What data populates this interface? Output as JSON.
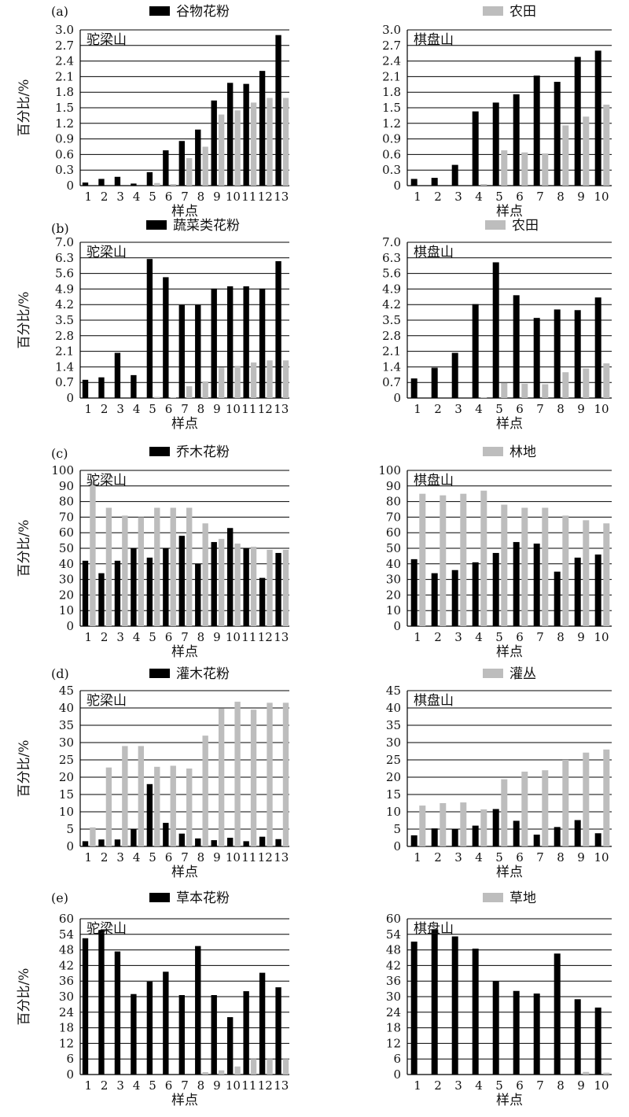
{
  "chart_data": [
    {
      "type": "bar",
      "panel_label": "(a)",
      "site": "驼梁山",
      "legend": "谷物花粉",
      "xlabel": "样点",
      "ylabel": "百分比/%",
      "ylim": [
        0,
        3.0
      ],
      "yticks": [
        "0",
        "0.3",
        "0.6",
        "0.9",
        "1.2",
        "1.5",
        "1.8",
        "2.1",
        "2.4",
        "2.7",
        "3.0"
      ],
      "categories": [
        "1",
        "2",
        "3",
        "4",
        "5",
        "6",
        "7",
        "8",
        "9",
        "10",
        "11",
        "12",
        "13"
      ],
      "series": [
        {
          "name": "谷物花粉",
          "color": "#000000",
          "values": [
            0.06,
            0.13,
            0.17,
            0.04,
            0.26,
            0.68,
            0.86,
            1.08,
            1.64,
            1.98,
            1.96,
            2.21,
            2.9
          ]
        },
        {
          "name": "农田",
          "color": "#bdbdbd",
          "values": [
            0.0,
            0.0,
            0.0,
            0.0,
            0.05,
            0.03,
            0.53,
            0.75,
            1.37,
            1.45,
            1.6,
            1.69,
            1.69
          ]
        }
      ]
    },
    {
      "type": "bar",
      "panel_label": "",
      "site": "棋盘山",
      "legend": "农田",
      "xlabel": "样点",
      "ylabel": "",
      "ylim": [
        0,
        3.0
      ],
      "yticks": [
        "0",
        "0.3",
        "0.6",
        "0.9",
        "1.2",
        "1.5",
        "1.8",
        "2.1",
        "2.4",
        "2.7",
        "3.0"
      ],
      "categories": [
        "1",
        "2",
        "3",
        "4",
        "5",
        "6",
        "7",
        "8",
        "9",
        "10"
      ],
      "series": [
        {
          "name": "谷物花粉",
          "color": "#000000",
          "values": [
            0.13,
            0.15,
            0.4,
            1.43,
            1.6,
            1.76,
            2.12,
            2.0,
            2.48,
            2.6
          ]
        },
        {
          "name": "农田",
          "color": "#bdbdbd",
          "values": [
            0.0,
            0.0,
            0.0,
            0.03,
            0.68,
            0.64,
            0.62,
            1.16,
            1.33,
            1.56
          ]
        }
      ]
    },
    {
      "type": "bar",
      "panel_label": "(b)",
      "site": "驼梁山",
      "legend": "蔬菜类花粉",
      "xlabel": "样点",
      "ylabel": "百分比/%",
      "ylim": [
        0,
        7.0
      ],
      "yticks": [
        "0",
        "0.7",
        "1.4",
        "2.1",
        "2.8",
        "3.5",
        "4.2",
        "4.9",
        "5.6",
        "6.3",
        "7.0"
      ],
      "categories": [
        "1",
        "2",
        "3",
        "4",
        "5",
        "6",
        "7",
        "8",
        "9",
        "10",
        "11",
        "12",
        "13"
      ],
      "series": [
        {
          "name": "蔬菜类花粉",
          "color": "#000000",
          "values": [
            0.82,
            0.93,
            2.03,
            1.03,
            6.25,
            5.43,
            4.18,
            4.18,
            4.92,
            5.02,
            5.02,
            4.92,
            6.15
          ]
        },
        {
          "name": "农田",
          "color": "#bdbdbd",
          "values": [
            0.0,
            0.0,
            0.0,
            0.0,
            0.05,
            0.03,
            0.53,
            0.75,
            1.37,
            1.45,
            1.6,
            1.69,
            1.69
          ]
        }
      ]
    },
    {
      "type": "bar",
      "panel_label": "",
      "site": "棋盘山",
      "legend": "农田",
      "xlabel": "样点",
      "ylabel": "",
      "ylim": [
        0,
        7.0
      ],
      "yticks": [
        "0",
        "0.7",
        "1.4",
        "2.1",
        "2.8",
        "3.5",
        "4.2",
        "4.9",
        "5.6",
        "6.3",
        "7.0"
      ],
      "categories": [
        "1",
        "2",
        "3",
        "4",
        "5",
        "6",
        "7",
        "8",
        "9",
        "10"
      ],
      "series": [
        {
          "name": "蔬菜类花粉",
          "color": "#000000",
          "values": [
            0.88,
            1.36,
            2.03,
            4.22,
            6.1,
            4.62,
            3.6,
            3.98,
            3.95,
            4.52
          ]
        },
        {
          "name": "农田",
          "color": "#bdbdbd",
          "values": [
            0.0,
            0.0,
            0.0,
            0.03,
            0.68,
            0.64,
            0.62,
            1.16,
            1.33,
            1.56
          ]
        }
      ]
    },
    {
      "type": "bar",
      "panel_label": "(c)",
      "site": "驼梁山",
      "legend": "乔木花粉",
      "xlabel": "样点",
      "ylabel": "百分比/%",
      "ylim": [
        0,
        100
      ],
      "yticks": [
        "0",
        "10",
        "20",
        "30",
        "40",
        "50",
        "60",
        "70",
        "80",
        "90",
        "100"
      ],
      "categories": [
        "1",
        "2",
        "3",
        "4",
        "5",
        "6",
        "7",
        "8",
        "9",
        "10",
        "11",
        "12",
        "13"
      ],
      "series": [
        {
          "name": "乔木花粉",
          "color": "#000000",
          "values": [
            42,
            34,
            42,
            50,
            44,
            50,
            58,
            40,
            54,
            63,
            50,
            31,
            47
          ]
        },
        {
          "name": "林地",
          "color": "#bdbdbd",
          "values": [
            93,
            76,
            71,
            70,
            76,
            76,
            76,
            66,
            56,
            53,
            51,
            49,
            49
          ]
        }
      ]
    },
    {
      "type": "bar",
      "panel_label": "",
      "site": "棋盘山",
      "legend": "林地",
      "xlabel": "样点",
      "ylabel": "",
      "ylim": [
        0,
        100
      ],
      "yticks": [
        "0",
        "10",
        "20",
        "30",
        "40",
        "50",
        "60",
        "70",
        "80",
        "90",
        "100"
      ],
      "categories": [
        "1",
        "2",
        "3",
        "4",
        "5",
        "6",
        "7",
        "8",
        "9",
        "10"
      ],
      "series": [
        {
          "name": "乔木花粉",
          "color": "#000000",
          "values": [
            43,
            34,
            36,
            41,
            47,
            54,
            53,
            35,
            44,
            46
          ]
        },
        {
          "name": "林地",
          "color": "#bdbdbd",
          "values": [
            85,
            84,
            85,
            87,
            78,
            76,
            76,
            71,
            68,
            66
          ]
        }
      ]
    },
    {
      "type": "bar",
      "panel_label": "(d)",
      "site": "驼梁山",
      "legend": "灌木花粉",
      "xlabel": "样点",
      "ylabel": "百分比/%",
      "ylim": [
        0,
        45
      ],
      "yticks": [
        "0",
        "5",
        "10",
        "15",
        "20",
        "25",
        "30",
        "35",
        "40",
        "45"
      ],
      "categories": [
        "1",
        "2",
        "3",
        "4",
        "5",
        "6",
        "7",
        "8",
        "9",
        "10",
        "11",
        "12",
        "13"
      ],
      "series": [
        {
          "name": "灌木花粉",
          "color": "#000000",
          "values": [
            1.5,
            2.0,
            2.0,
            5.0,
            18.0,
            6.8,
            3.7,
            2.3,
            1.8,
            2.5,
            1.5,
            2.8,
            2.1
          ]
        },
        {
          "name": "灌丛",
          "color": "#bdbdbd",
          "values": [
            5.5,
            22.8,
            29.0,
            29.0,
            23.0,
            23.3,
            22.5,
            32.0,
            39.8,
            41.8,
            39.5,
            41.5,
            41.5
          ]
        }
      ]
    },
    {
      "type": "bar",
      "panel_label": "",
      "site": "棋盘山",
      "legend": "灌丛",
      "xlabel": "样点",
      "ylabel": "",
      "ylim": [
        0,
        45
      ],
      "yticks": [
        "0",
        "5",
        "10",
        "15",
        "20",
        "25",
        "30",
        "35",
        "40",
        "45"
      ],
      "categories": [
        "1",
        "2",
        "3",
        "4",
        "5",
        "6",
        "7",
        "8",
        "9",
        "10"
      ],
      "series": [
        {
          "name": "灌木花粉",
          "color": "#000000",
          "values": [
            3.2,
            5.2,
            4.9,
            6.0,
            10.8,
            7.4,
            3.4,
            5.6,
            7.6,
            3.8
          ]
        },
        {
          "name": "灌丛",
          "color": "#bdbdbd",
          "values": [
            11.8,
            12.5,
            12.7,
            10.7,
            19.4,
            21.6,
            22.0,
            25.0,
            27.1,
            28.0
          ]
        }
      ]
    },
    {
      "type": "bar",
      "panel_label": "(e)",
      "site": "驼梁山",
      "legend": "草本花粉",
      "xlabel": "样点",
      "ylabel": "百分比/%",
      "ylim": [
        0,
        60
      ],
      "yticks": [
        "0",
        "6",
        "12",
        "18",
        "24",
        "30",
        "36",
        "42",
        "48",
        "54",
        "60"
      ],
      "categories": [
        "1",
        "2",
        "3",
        "4",
        "5",
        "6",
        "7",
        "8",
        "9",
        "10",
        "11",
        "12",
        "13"
      ],
      "series": [
        {
          "name": "草本花粉",
          "color": "#000000",
          "values": [
            52.5,
            55.7,
            47.4,
            31.0,
            35.8,
            39.6,
            30.6,
            49.5,
            30.6,
            22.1,
            32.1,
            39.2,
            33.6
          ]
        },
        {
          "name": "草地",
          "color": "#bdbdbd",
          "values": [
            0.0,
            0.0,
            0.0,
            0.0,
            0.0,
            0.0,
            0.0,
            0.9,
            1.6,
            3.1,
            6.0,
            6.0,
            6.0
          ]
        }
      ]
    },
    {
      "type": "bar",
      "panel_label": "",
      "site": "棋盘山",
      "legend": "草地",
      "xlabel": "样点",
      "ylabel": "",
      "ylim": [
        0,
        60
      ],
      "yticks": [
        "0",
        "6",
        "12",
        "18",
        "24",
        "30",
        "36",
        "42",
        "48",
        "54",
        "60"
      ],
      "categories": [
        "1",
        "2",
        "3",
        "4",
        "5",
        "6",
        "7",
        "8",
        "9",
        "10"
      ],
      "series": [
        {
          "name": "草本花粉",
          "color": "#000000",
          "values": [
            51.2,
            56.0,
            53.2,
            48.5,
            35.9,
            32.2,
            31.2,
            46.6,
            29.0,
            25.8
          ]
        },
        {
          "name": "草地",
          "color": "#bdbdbd",
          "values": [
            0.0,
            0.0,
            0.0,
            0.0,
            0.0,
            0.0,
            0.0,
            0.0,
            1.0,
            0.7
          ]
        }
      ]
    }
  ]
}
